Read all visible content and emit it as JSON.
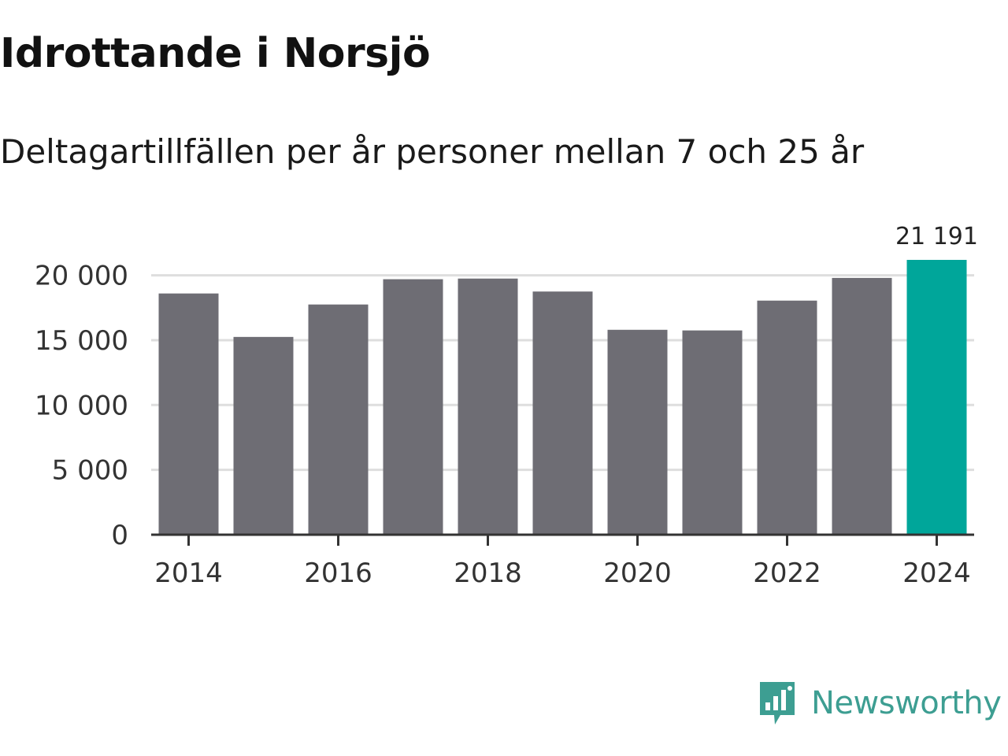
{
  "title": "Idrottande i Norsjö",
  "subtitle": "Deltagartillfällen per år personer mellan 7 och 25 år",
  "brand": {
    "name": "Newsworthy",
    "icon": "newsworthy-logo-icon"
  },
  "colors": {
    "bar": "#6e6d74",
    "highlight": "#00a69a",
    "grid": "#dedede",
    "axis": "#333333",
    "brand": "#3d9e92"
  },
  "chart_data": {
    "type": "bar",
    "title": "Idrottande i Norsjö",
    "subtitle": "Deltagartillfällen per år personer mellan 7 och 25 år",
    "xlabel": "",
    "ylabel": "",
    "categories": [
      "2014",
      "2015",
      "2016",
      "2017",
      "2018",
      "2019",
      "2020",
      "2021",
      "2022",
      "2023",
      "2024"
    ],
    "values": [
      18600,
      15250,
      17750,
      19700,
      19750,
      18750,
      15800,
      15750,
      18050,
      19800,
      21191
    ],
    "highlight_index": 10,
    "data_labels": [
      {
        "category": "2024",
        "text": "21 191"
      }
    ],
    "ylim": [
      0,
      21191
    ],
    "yticks": [
      0,
      5000,
      10000,
      15000,
      20000
    ],
    "ytick_labels": [
      "0",
      "5 000",
      "10 000",
      "15 000",
      "20 000"
    ],
    "xtick_labels": [
      "2014",
      "2016",
      "2018",
      "2020",
      "2022",
      "2024"
    ],
    "grid": true,
    "legend": "none"
  }
}
